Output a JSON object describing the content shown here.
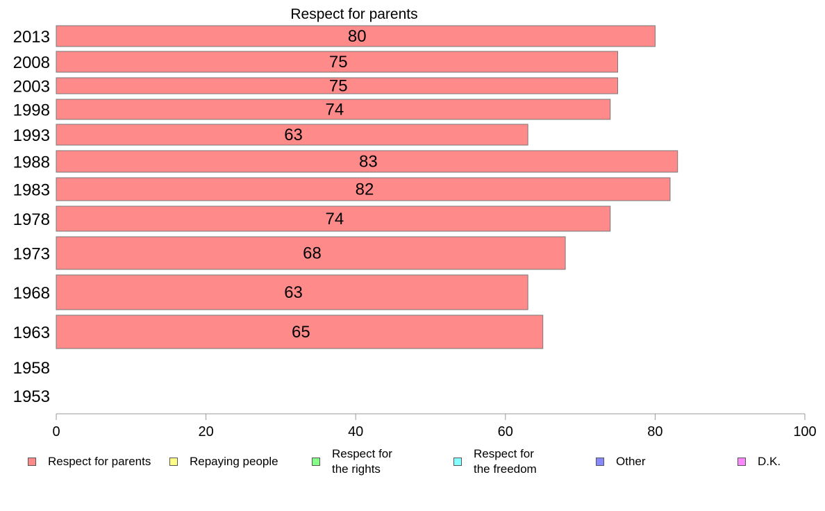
{
  "chart_data": {
    "type": "bar",
    "orientation": "horizontal",
    "title": "Respect for parents",
    "categories": [
      "2013",
      "2008",
      "2003",
      "1998",
      "1993",
      "1988",
      "1983",
      "1978",
      "1973",
      "1968",
      "1963",
      "1958",
      "1953"
    ],
    "series": [
      {
        "name": "Respect for parents",
        "color": "#ff8a8a",
        "values": [
          80,
          75,
          75,
          74,
          63,
          83,
          82,
          74,
          68,
          63,
          65,
          null,
          null
        ],
        "value_labels": [
          "80",
          "75",
          "75",
          "74",
          "63",
          "83",
          "82",
          "74",
          "68",
          "63",
          "65",
          "",
          ""
        ]
      }
    ],
    "xlim": [
      0,
      100
    ],
    "xticks": [
      "0",
      "20",
      "40",
      "60",
      "80",
      "100"
    ],
    "grid": false,
    "legend_position": "bottom",
    "legend": [
      {
        "label": "Respect for parents",
        "color": "#ff8a8a"
      },
      {
        "label": "Repaying people",
        "color": "#ffff88"
      },
      {
        "label": "Respect for\nthe rights",
        "color": "#88ff88"
      },
      {
        "label": "Respect for\nthe freedom",
        "color": "#88ffff"
      },
      {
        "label": "Other",
        "color": "#8888ff"
      },
      {
        "label": "D.K.",
        "color": "#ff88ff"
      }
    ]
  }
}
